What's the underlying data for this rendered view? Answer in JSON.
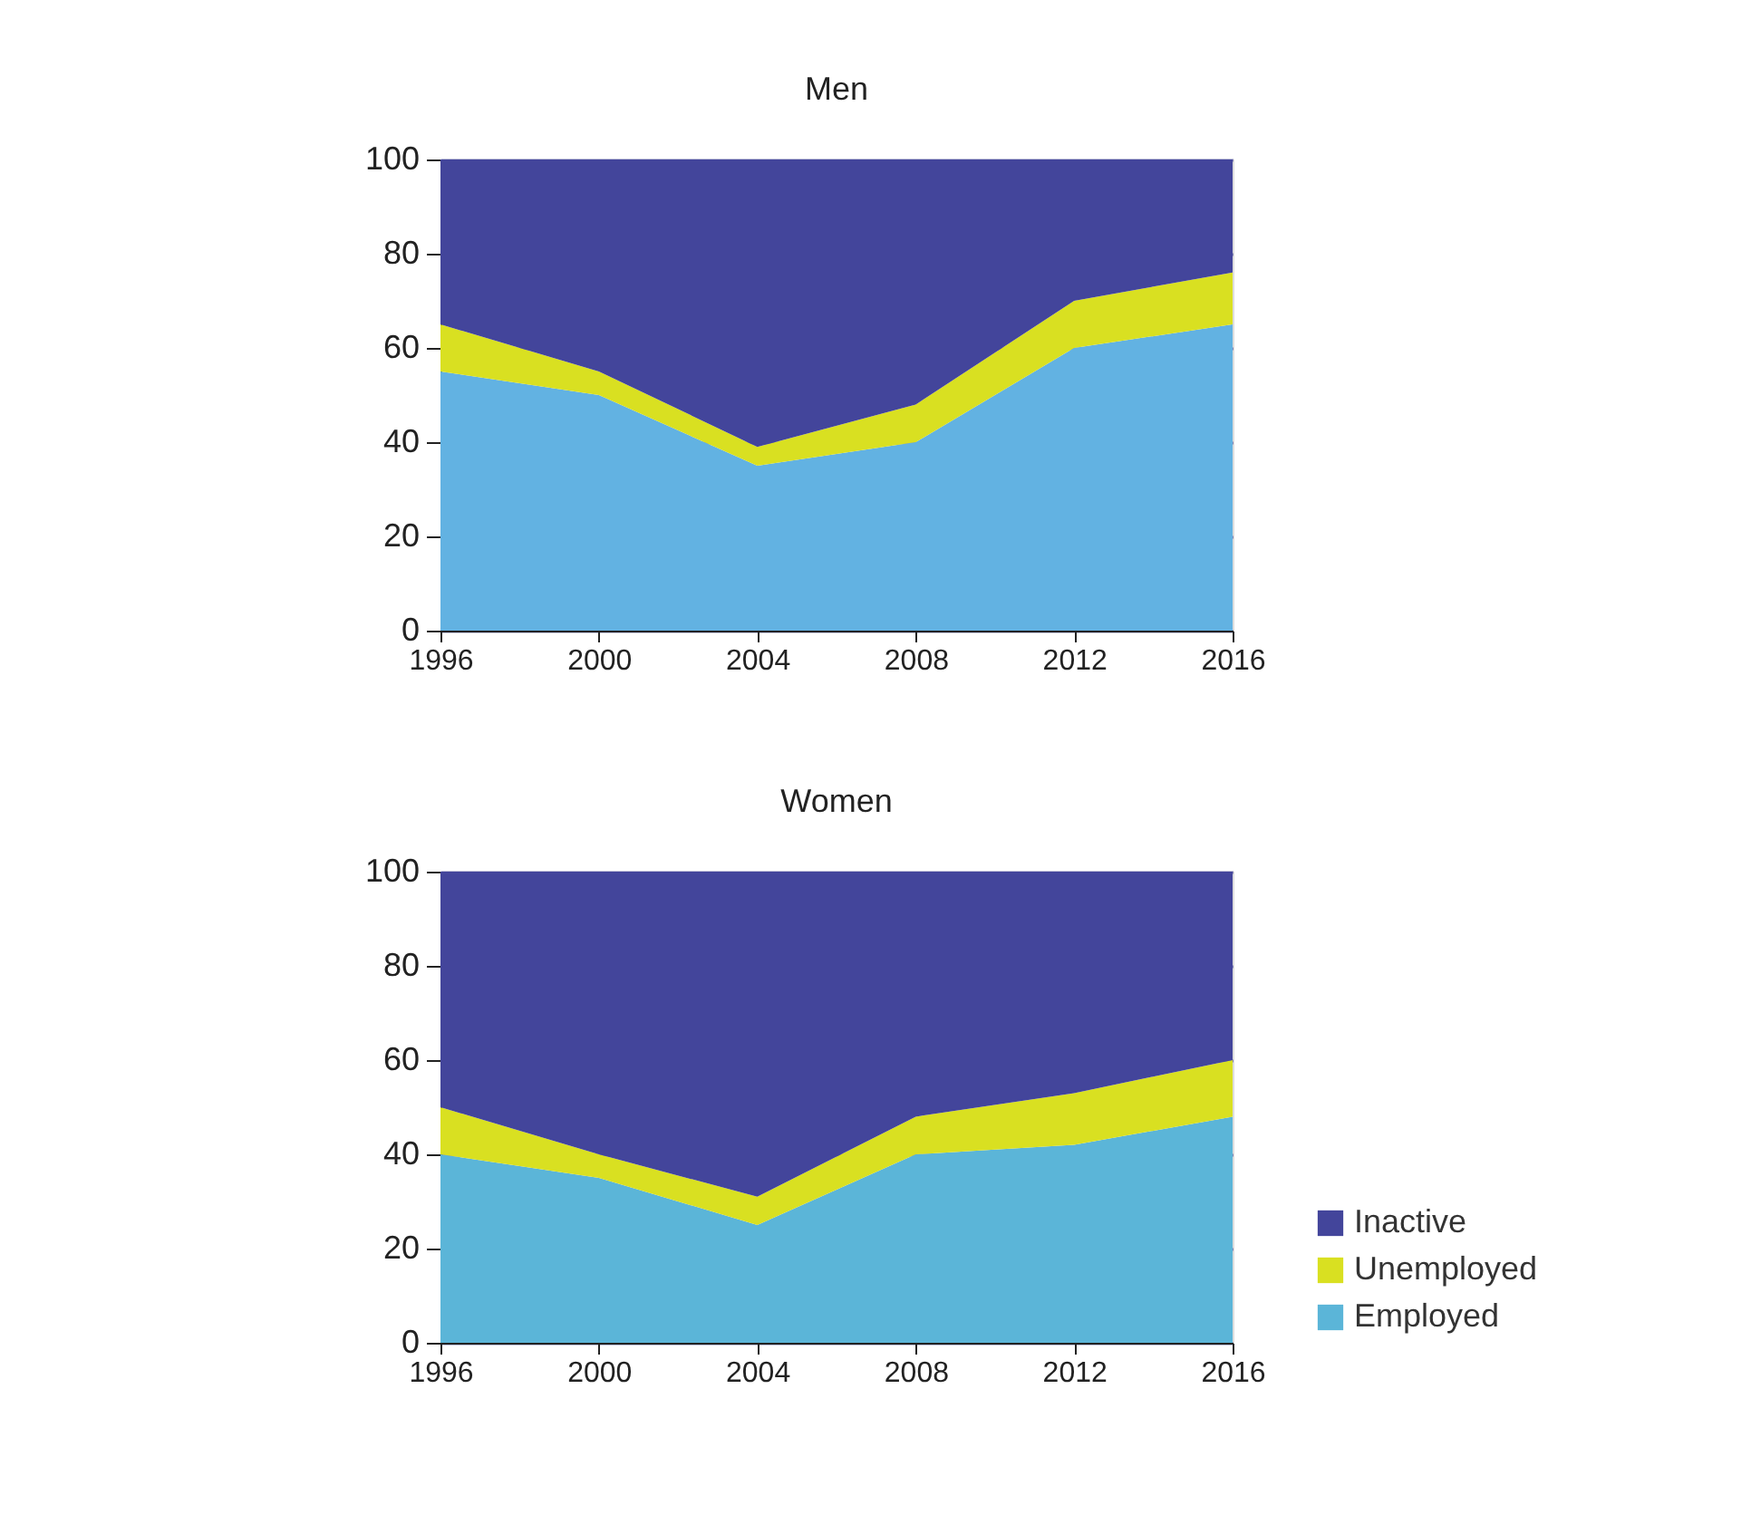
{
  "chart_data": [
    {
      "type": "area",
      "title": "Men",
      "x": [
        1996,
        2000,
        2004,
        2008,
        2012,
        2016
      ],
      "stacked": true,
      "xlim": [
        1996,
        2016
      ],
      "xticks": [
        1996,
        2000,
        2004,
        2008,
        2012,
        2016
      ],
      "ylim": [
        0,
        100
      ],
      "yticks": [
        0,
        20,
        40,
        60,
        80,
        100
      ],
      "grid": "y",
      "legend": false,
      "series": [
        {
          "color": "#62b2e2",
          "values": [
            55,
            50,
            35,
            40,
            60,
            65
          ]
        },
        {
          "color": "#d9e021",
          "values": [
            10,
            5,
            4,
            8,
            10,
            11
          ]
        },
        {
          "color": "#43459b",
          "values": [
            35,
            45,
            61,
            52,
            30,
            24
          ]
        }
      ]
    },
    {
      "type": "area",
      "title": "Women",
      "x": [
        1996,
        2000,
        2004,
        2008,
        2012,
        2016
      ],
      "stacked": true,
      "xlim": [
        1996,
        2016
      ],
      "xticks": [
        1996,
        2000,
        2004,
        2008,
        2012,
        2016
      ],
      "ylim": [
        0,
        100
      ],
      "yticks": [
        0,
        20,
        40,
        60,
        80,
        100
      ],
      "grid": "y",
      "legend": "bottom right",
      "series": [
        {
          "name": "Employed",
          "color": "#5bb5d8",
          "values": [
            40,
            35,
            25,
            40,
            42,
            48
          ]
        },
        {
          "name": "Unemployed",
          "color": "#d9e021",
          "values": [
            10,
            5,
            6,
            8,
            11,
            12
          ]
        },
        {
          "name": "Inactive",
          "color": "#43459b",
          "values": [
            50,
            60,
            69,
            52,
            47,
            40
          ]
        }
      ]
    }
  ]
}
